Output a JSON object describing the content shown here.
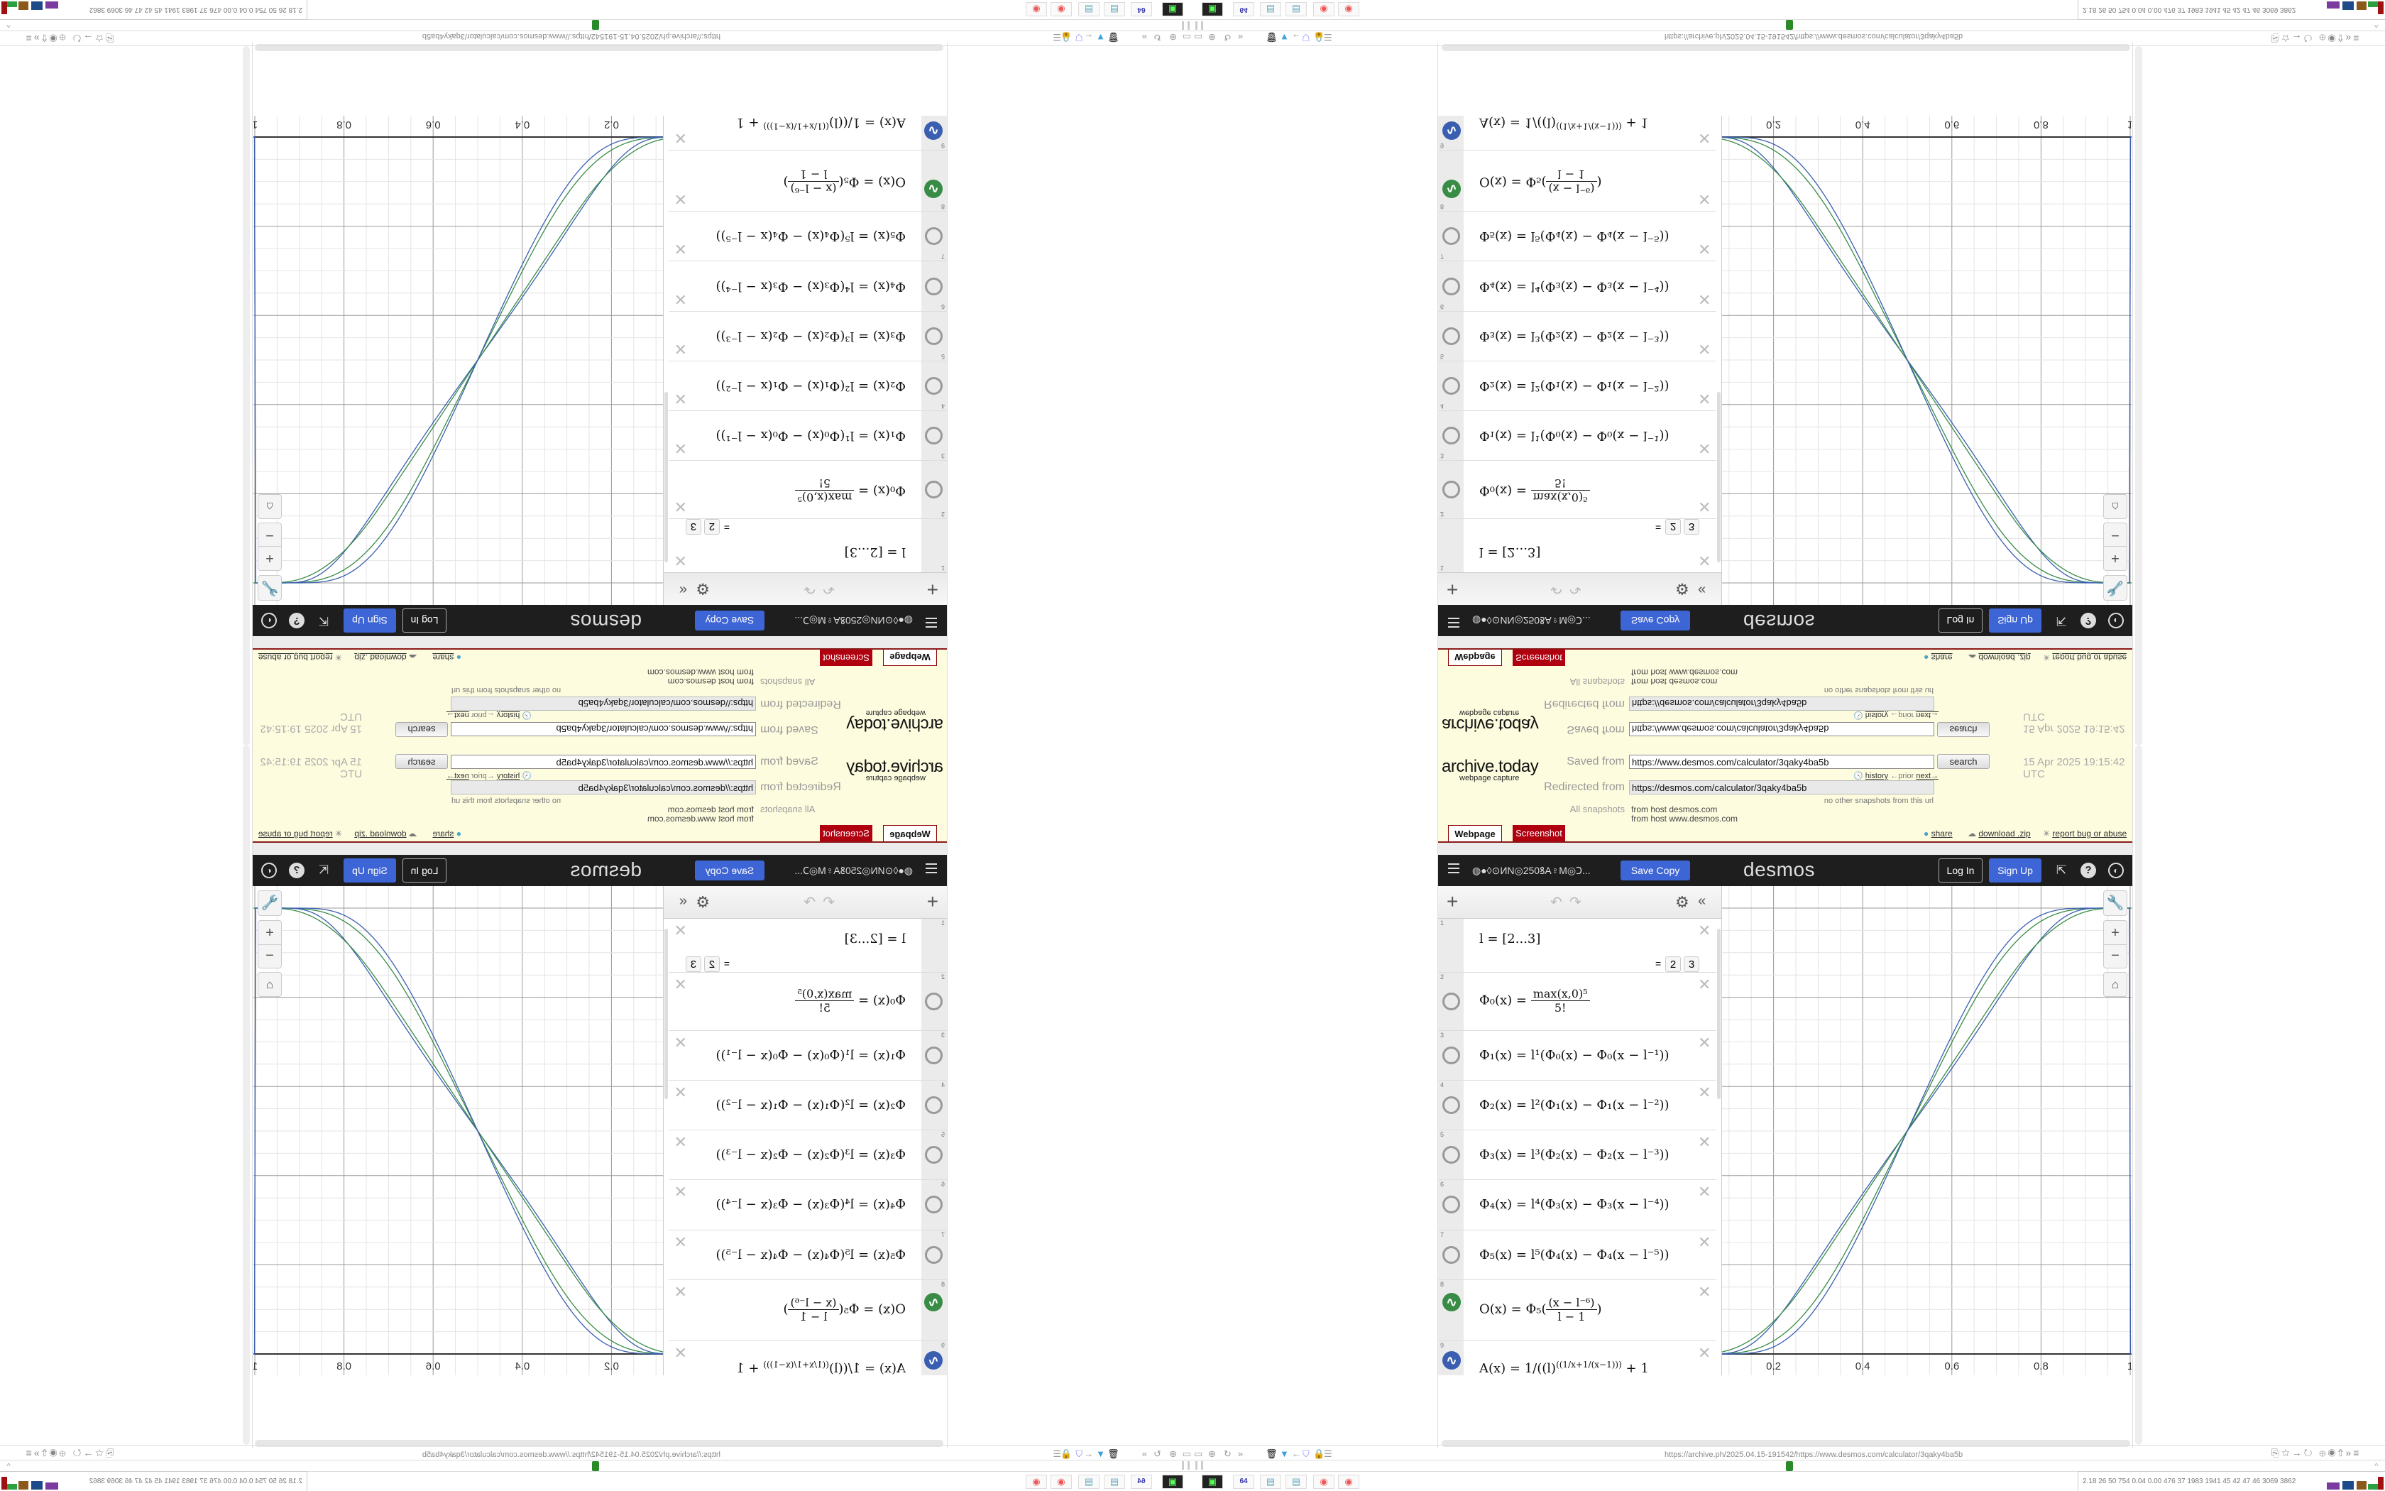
{
  "archive": {
    "logo": "archive.today",
    "caption": "webpage capture",
    "saved_from_label": "Saved from",
    "saved_from_url": "https://www.desmos.com/calculator/3qaky4ba5b",
    "search_label": "search",
    "date": "15 Apr 2025 19:15:42 UTC",
    "history_label": "history",
    "prior_label": "←prior",
    "next_label": "next→",
    "redirected_from_label": "Redirected from",
    "redirected_from_url": "https://desmos.com/calculator/3qaky4ba5b",
    "no_other_snapshots": "no other snapshots from this url",
    "all_snapshots_label": "All snapshots",
    "from_host_1": "from host desmos.com",
    "from_host_2": "from host www.desmos.com",
    "tab_webpage": "Webpage",
    "tab_screenshot": "Screenshot",
    "share_label": "share",
    "download_label": "download .zip",
    "report_label": "report bug or abuse"
  },
  "desmos_bar": {
    "graph_title": "◍●◊⊙ИN◎250ꝸA♀M◎Ↄ...",
    "save_copy": "Save Copy",
    "logo": "desmos",
    "log_in": "Log In",
    "sign_up": "Sign Up",
    "icons": [
      "share-icon",
      "help-icon",
      "language-globe-icon"
    ]
  },
  "expressions": [
    {
      "num": "1",
      "text": "l = [2...3]",
      "result_prefix": "=",
      "results": [
        "2",
        "3"
      ]
    },
    {
      "num": "2",
      "lhs": "Φ₀(x) =",
      "numerator": "max(x,0)⁵",
      "denominator": "5!"
    },
    {
      "num": "3",
      "text": "Φ₁(x) = l¹(Φ₀(x) − Φ₀(x − l⁻¹))"
    },
    {
      "num": "4",
      "text": "Φ₂(x) = l²(Φ₁(x) − Φ₁(x − l⁻²))"
    },
    {
      "num": "5",
      "text": "Φ₃(x) = l³(Φ₂(x) − Φ₂(x − l⁻³))"
    },
    {
      "num": "6",
      "text": "Φ₄(x) = l⁴(Φ₃(x) − Φ₃(x − l⁻⁴))"
    },
    {
      "num": "7",
      "text": "Φ₅(x) = l⁵(Φ₄(x) − Φ₄(x − l⁻⁵))"
    },
    {
      "num": "8",
      "lhs": "O(x) = Φ₅(",
      "numerator": "(x − l⁻⁶)",
      "denominator": "l − 1",
      "tail": ")",
      "color": "#388c46"
    },
    {
      "num": "9",
      "base": "A(x) = 1/((l)",
      "sup": "((1/x+1/(x−1)))",
      "tail": " + 1",
      "color": "#3b5fb0"
    }
  ],
  "graph": {
    "l_values": [
      2,
      3
    ],
    "x_tick_labels": [
      "0.2",
      "0.4",
      "0.6",
      "0.8",
      "1"
    ],
    "x_ticks": [
      0.2,
      0.4,
      0.6,
      0.8,
      1
    ],
    "x_range": [
      0.085,
      1.003
    ],
    "y_range": [
      -0.05,
      1.05
    ],
    "grid": true,
    "series_colors": {
      "O": "#388c46",
      "A": "#3b5fb0"
    }
  },
  "browser": {
    "url": "https://archive.ph/2025.04.15-191542/https://www.desmos.com/calculator/3qaky4ba5b",
    "stats": "2.18  26  50  754  0.04  0.00  476  37  1983 1941  45  42  47  46  3069 3862",
    "taskbar": [
      "drive-icon",
      "floppy-64-icon",
      "notepad-icon",
      "notepad-icon",
      "firefox-icon",
      "firefox-icon"
    ],
    "floppy_label": "64"
  }
}
